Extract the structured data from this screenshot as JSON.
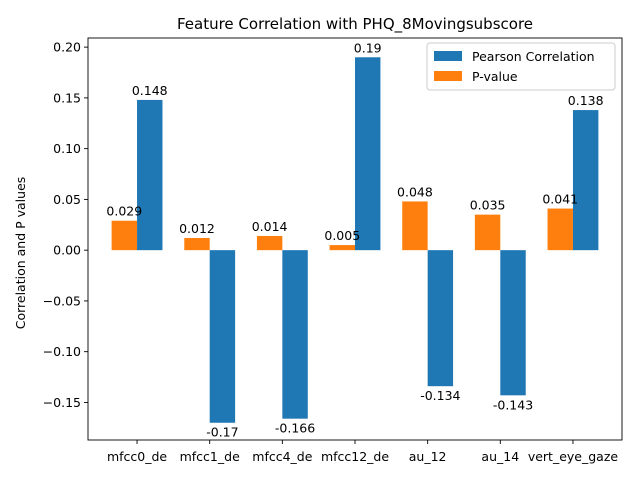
{
  "chart_data": {
    "type": "bar",
    "title": "Feature Correlation with PHQ_8Movingsubscore",
    "xlabel": "",
    "ylabel": "Correlation and P values",
    "categories": [
      "mfcc0_de",
      "mfcc1_de",
      "mfcc4_de",
      "mfcc12_de",
      "au_12",
      "au_14",
      "vert_eye_gaze"
    ],
    "series": [
      {
        "name": "P-value",
        "color": "#ff7f0e",
        "values": [
          0.029,
          0.012,
          0.014,
          0.005,
          0.048,
          0.035,
          0.041
        ],
        "labels": [
          "0.029",
          "0.012",
          "0.014",
          "0.005",
          "0.048",
          "0.035",
          "0.041"
        ]
      },
      {
        "name": "Pearson Correlation",
        "color": "#1f77b4",
        "values": [
          0.148,
          -0.17,
          -0.166,
          0.19,
          -0.134,
          -0.143,
          0.138
        ],
        "labels": [
          "0.148",
          "-0.17",
          "-0.166",
          "0.19",
          "-0.134",
          "-0.143",
          "0.138"
        ]
      }
    ],
    "legend_order": [
      "Pearson Correlation",
      "P-value"
    ],
    "ylim": [
      -0.187,
      0.209
    ],
    "yticks": [
      -0.15,
      -0.1,
      -0.05,
      0.0,
      0.05,
      0.1,
      0.15,
      0.2
    ],
    "ytick_labels": [
      "−0.15",
      "−0.10",
      "−0.05",
      "0.00",
      "0.05",
      "0.10",
      "0.15",
      "0.20"
    ],
    "grid": false,
    "legend_position": "upper right"
  }
}
